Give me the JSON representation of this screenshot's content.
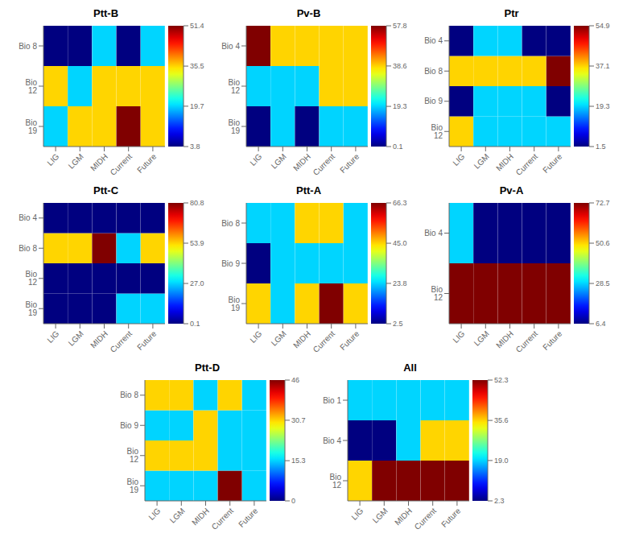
{
  "chart_data": [
    {
      "type": "heatmap",
      "title": "Ptt-B",
      "color": "jet",
      "rows": [
        "Bio 8",
        "Bio 12",
        "Bio 19"
      ],
      "categories": [
        "LIG",
        "LGM",
        "MIDH",
        "Current",
        "Future"
      ],
      "values": [
        [
          3.8,
          3.8,
          19.7,
          3.8,
          19.7
        ],
        [
          35.5,
          19.7,
          35.5,
          35.5,
          35.5
        ],
        [
          19.7,
          35.5,
          35.5,
          51.4,
          35.5
        ]
      ],
      "colorbar_range": [
        3.8,
        51.4
      ],
      "colorbar_ticks": [
        51.4,
        35.5,
        19.7,
        3.8
      ]
    },
    {
      "type": "heatmap",
      "title": "Pv-B",
      "color": "jet",
      "rows": [
        "Bio 4",
        "Bio 12",
        "Bio 19"
      ],
      "categories": [
        "LIG",
        "LGM",
        "MIDH",
        "Current",
        "Future"
      ],
      "values": [
        [
          57.8,
          38.6,
          38.6,
          38.6,
          38.6
        ],
        [
          19.3,
          19.3,
          19.3,
          38.6,
          38.6
        ],
        [
          0.1,
          19.3,
          0.1,
          19.3,
          19.3
        ]
      ],
      "colorbar_range": [
        0.1,
        57.8
      ],
      "colorbar_ticks": [
        57.8,
        38.6,
        19.3,
        0.1
      ]
    },
    {
      "type": "heatmap",
      "title": "Ptr",
      "color": "jet",
      "rows": [
        "Bio 4",
        "Bio 8",
        "Bio 9",
        "Bio 12"
      ],
      "categories": [
        "LIG",
        "LGM",
        "MIDH",
        "Current",
        "Future"
      ],
      "values": [
        [
          1.5,
          19.3,
          19.3,
          1.5,
          1.5
        ],
        [
          37.1,
          37.1,
          37.1,
          37.1,
          54.9
        ],
        [
          1.5,
          19.3,
          19.3,
          19.3,
          1.5
        ],
        [
          37.1,
          19.3,
          19.3,
          19.3,
          19.3
        ]
      ],
      "colorbar_range": [
        1.5,
        54.9
      ],
      "colorbar_ticks": [
        54.9,
        37.1,
        19.3,
        1.5
      ]
    },
    {
      "type": "heatmap",
      "title": "Ptt-C",
      "color": "jet",
      "rows": [
        "Bio 4",
        "Bio 8",
        "Bio 12",
        "Bio 19"
      ],
      "categories": [
        "LIG",
        "LGM",
        "MIDH",
        "Current",
        "Future"
      ],
      "values": [
        [
          0.1,
          0.1,
          0.1,
          0.1,
          0.1
        ],
        [
          53.9,
          53.9,
          80.8,
          27.0,
          53.9
        ],
        [
          0.1,
          0.1,
          0.1,
          0.1,
          0.1
        ],
        [
          0.1,
          0.1,
          0.1,
          27.0,
          27.0
        ]
      ],
      "colorbar_range": [
        0.1,
        80.8
      ],
      "colorbar_ticks": [
        80.8,
        53.9,
        {
          "value": 27.0,
          "label": "27.0"
        },
        0.1
      ]
    },
    {
      "type": "heatmap",
      "title": "Ptt-A",
      "color": "jet",
      "rows": [
        "Bio 8",
        "Bio 9",
        "Bio 19"
      ],
      "categories": [
        "LIG",
        "LGM",
        "MIDH",
        "Current",
        "Future"
      ],
      "values": [
        [
          23.8,
          23.8,
          45.0,
          45.0,
          23.8
        ],
        [
          2.5,
          23.8,
          23.8,
          23.8,
          23.8
        ],
        [
          45.0,
          23.8,
          45.0,
          66.3,
          45.0
        ]
      ],
      "colorbar_range": [
        2.5,
        66.3
      ],
      "colorbar_ticks": [
        66.3,
        {
          "value": 45.0,
          "label": "45.0"
        },
        23.8,
        2.5
      ]
    },
    {
      "type": "heatmap",
      "title": "Pv-A",
      "color": "jet",
      "rows": [
        "Bio 4",
        "Bio 12"
      ],
      "categories": [
        "LIG",
        "LGM",
        "MIDH",
        "Current",
        "Future"
      ],
      "values": [
        [
          28.5,
          6.4,
          6.4,
          6.4,
          6.4
        ],
        [
          72.7,
          72.7,
          72.7,
          72.7,
          72.7
        ]
      ],
      "colorbar_range": [
        6.4,
        72.7
      ],
      "colorbar_ticks": [
        72.7,
        50.6,
        28.5,
        6.4
      ]
    },
    {
      "type": "heatmap",
      "title": "Ptt-D",
      "color": "jet",
      "rows": [
        "Bio 8",
        "Bio 9",
        "Bio 12",
        "Bio 19"
      ],
      "categories": [
        "LIG",
        "LGM",
        "MIDH",
        "Current",
        "Future"
      ],
      "values": [
        [
          30.7,
          30.7,
          15.3,
          30.7,
          15.3
        ],
        [
          15.3,
          15.3,
          30.7,
          15.3,
          15.3
        ],
        [
          30.7,
          30.7,
          30.7,
          15.3,
          15.3
        ],
        [
          15.3,
          15.3,
          15.3,
          46.0,
          15.3
        ]
      ],
      "colorbar_range": [
        0.0,
        46.0
      ],
      "colorbar_ticks": [
        46,
        30.7,
        15.3,
        0
      ]
    },
    {
      "type": "heatmap",
      "title": "All",
      "color": "jet",
      "rows": [
        "Bio 1",
        "Bio 4",
        "Bio 12"
      ],
      "categories": [
        "LIG",
        "LGM",
        "MIDH",
        "Current",
        "Future"
      ],
      "values": [
        [
          19.0,
          19.0,
          19.0,
          19.0,
          19.0
        ],
        [
          2.3,
          2.3,
          19.0,
          35.6,
          35.6
        ],
        [
          35.6,
          52.3,
          52.3,
          52.3,
          52.3
        ]
      ],
      "colorbar_range": [
        2.3,
        52.3
      ],
      "colorbar_ticks": [
        52.3,
        35.6,
        {
          "value": 19.0,
          "label": "19.0"
        },
        2.3
      ]
    }
  ]
}
